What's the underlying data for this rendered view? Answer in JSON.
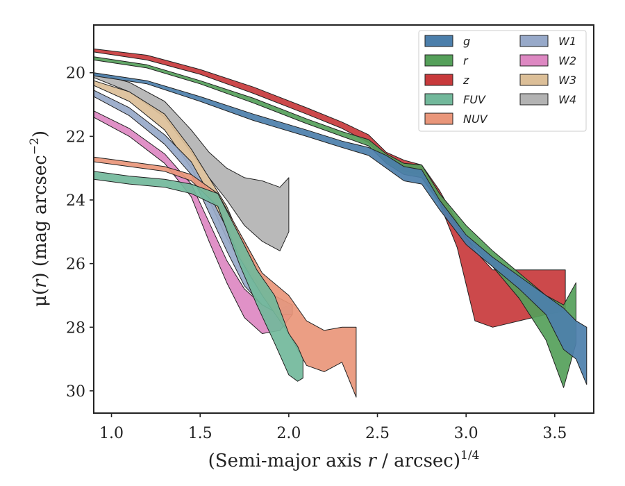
{
  "chart_data": {
    "type": "area",
    "xlabel_main": "(Semi-major axis ",
    "xlabel_var": "r",
    "xlabel_unit": " / arcsec)",
    "xlabel_exp": "1/4",
    "ylabel_main": "μ(",
    "ylabel_var": "r",
    "ylabel_unit": ") (mag arcsec",
    "ylabel_exp": "−2",
    "ylabel_close": ")",
    "xlim": [
      0.9,
      3.72
    ],
    "ylim": [
      30.7,
      18.5
    ],
    "y_inverted": true,
    "grid": false,
    "legend_position": "top-right",
    "legend_columns": 2,
    "xticks": [
      1.0,
      1.5,
      2.0,
      2.5,
      3.0,
      3.5
    ],
    "xtick_labels": [
      "1.0",
      "1.5",
      "2.0",
      "2.5",
      "3.0",
      "3.5"
    ],
    "yticks": [
      20,
      22,
      24,
      26,
      28,
      30
    ],
    "ytick_labels": [
      "20",
      "22",
      "24",
      "26",
      "28",
      "30"
    ],
    "series": [
      {
        "name": "g",
        "color": "#4c7fab",
        "x": [
          0.9,
          1.2,
          1.5,
          1.8,
          2.1,
          2.3,
          2.45,
          2.55,
          2.65,
          2.75,
          2.85,
          3.0,
          3.15,
          3.3,
          3.45,
          3.55,
          3.62,
          3.68
        ],
        "lo": [
          20.0,
          20.25,
          20.75,
          21.3,
          21.8,
          22.15,
          22.35,
          22.6,
          22.95,
          23.05,
          24.0,
          25.1,
          25.8,
          26.4,
          27.0,
          27.4,
          27.8,
          28.0
        ],
        "hi": [
          20.1,
          20.35,
          20.9,
          21.5,
          22.0,
          22.35,
          22.6,
          23.0,
          23.4,
          23.5,
          24.3,
          25.4,
          26.1,
          26.8,
          27.6,
          28.7,
          29.0,
          29.8
        ]
      },
      {
        "name": "r",
        "color": "#55a05a",
        "x": [
          0.9,
          1.2,
          1.5,
          1.8,
          2.1,
          2.3,
          2.45,
          2.55,
          2.65,
          2.75,
          2.85,
          3.0,
          3.15,
          3.3,
          3.45,
          3.55,
          3.62
        ],
        "lo": [
          19.5,
          19.75,
          20.25,
          20.8,
          21.45,
          21.85,
          22.1,
          22.55,
          22.85,
          22.9,
          23.8,
          24.8,
          25.6,
          26.3,
          27.0,
          27.3,
          26.6
        ],
        "hi": [
          19.6,
          19.85,
          20.35,
          20.95,
          21.6,
          22.0,
          22.3,
          22.85,
          23.2,
          23.3,
          24.1,
          25.2,
          26.1,
          27.1,
          28.4,
          29.9,
          28.5
        ]
      },
      {
        "name": "z",
        "color": "#c83a3c",
        "x": [
          0.9,
          1.2,
          1.5,
          1.8,
          2.1,
          2.3,
          2.45,
          2.55,
          2.65,
          2.75,
          2.85,
          2.95,
          3.05,
          3.15,
          3.3,
          3.45,
          3.56
        ],
        "lo": [
          19.25,
          19.45,
          19.9,
          20.45,
          21.1,
          21.55,
          21.95,
          22.5,
          22.75,
          22.9,
          23.7,
          24.7,
          25.6,
          26.2,
          26.2,
          26.2,
          26.2
        ],
        "hi": [
          19.35,
          19.6,
          20.05,
          20.65,
          21.3,
          21.75,
          22.2,
          22.8,
          23.1,
          23.2,
          24.1,
          25.5,
          27.8,
          28.0,
          27.8,
          27.6,
          27.5
        ]
      },
      {
        "name": "FUV",
        "color": "#72b89b",
        "x": [
          0.9,
          1.1,
          1.3,
          1.45,
          1.6,
          1.72,
          1.82,
          1.92,
          2.0,
          2.05,
          2.08
        ],
        "lo": [
          23.1,
          23.25,
          23.35,
          23.5,
          23.8,
          25.1,
          26.2,
          27.0,
          28.2,
          28.6,
          29.0
        ],
        "hi": [
          23.35,
          23.5,
          23.6,
          23.8,
          24.2,
          26.0,
          27.3,
          28.5,
          29.5,
          29.7,
          29.6
        ]
      },
      {
        "name": "NUV",
        "color": "#e9967a",
        "x": [
          0.9,
          1.1,
          1.3,
          1.45,
          1.6,
          1.72,
          1.85,
          2.0,
          2.1,
          2.2,
          2.3,
          2.38
        ],
        "lo": [
          22.65,
          22.8,
          22.95,
          23.2,
          23.8,
          25.0,
          26.3,
          27.0,
          27.8,
          28.1,
          28.0,
          28.0
        ],
        "hi": [
          22.8,
          22.95,
          23.1,
          23.4,
          24.2,
          25.8,
          27.0,
          28.2,
          29.2,
          29.4,
          29.1,
          30.2
        ]
      },
      {
        "name": "W1",
        "color": "#97a9c9",
        "x": [
          0.9,
          1.1,
          1.3,
          1.45,
          1.55,
          1.65,
          1.75,
          1.85,
          1.95,
          2.02
        ],
        "lo": [
          20.55,
          21.1,
          21.95,
          22.8,
          23.8,
          24.9,
          26.0,
          26.8,
          27.1,
          27.3
        ],
        "hi": [
          20.75,
          21.35,
          22.25,
          23.2,
          24.4,
          25.6,
          26.7,
          27.3,
          27.6,
          27.6
        ]
      },
      {
        "name": "W2",
        "color": "#dd88c2",
        "x": [
          0.9,
          1.1,
          1.3,
          1.45,
          1.55,
          1.65,
          1.75,
          1.85,
          1.95,
          2.02
        ],
        "lo": [
          21.2,
          21.75,
          22.55,
          23.5,
          24.7,
          25.9,
          26.8,
          27.3,
          27.4,
          27.3
        ],
        "hi": [
          21.4,
          22.0,
          22.85,
          23.9,
          25.3,
          26.6,
          27.7,
          28.2,
          28.1,
          27.6
        ]
      },
      {
        "name": "W3",
        "color": "#dcbf98",
        "x": [
          0.9,
          1.1,
          1.3,
          1.45,
          1.55,
          1.65,
          1.72,
          1.8
        ],
        "lo": [
          20.25,
          20.6,
          21.3,
          22.4,
          23.3,
          24.2,
          25.1,
          25.8
        ],
        "hi": [
          20.4,
          20.9,
          21.8,
          23.0,
          24.0,
          25.2,
          25.9,
          26.6
        ]
      },
      {
        "name": "W4",
        "color": "#b3b3b3",
        "x": [
          0.9,
          1.1,
          1.3,
          1.45,
          1.55,
          1.65,
          1.75,
          1.85,
          1.95,
          2.0
        ],
        "lo": [
          20.0,
          20.3,
          20.9,
          21.8,
          22.5,
          23.0,
          23.3,
          23.4,
          23.6,
          23.3
        ],
        "hi": [
          20.15,
          20.6,
          21.4,
          22.5,
          23.3,
          24.0,
          24.8,
          25.3,
          25.6,
          25.0
        ]
      }
    ],
    "legend": [
      {
        "label": "g",
        "color": "#4c7fab"
      },
      {
        "label": "r",
        "color": "#55a05a"
      },
      {
        "label": "z",
        "color": "#c83a3c"
      },
      {
        "label": "FUV",
        "color": "#72b89b"
      },
      {
        "label": "NUV",
        "color": "#e9967a"
      },
      {
        "label": "W1",
        "color": "#97a9c9"
      },
      {
        "label": "W2",
        "color": "#dd88c2"
      },
      {
        "label": "W3",
        "color": "#dcbf98"
      },
      {
        "label": "W4",
        "color": "#b3b3b3"
      }
    ]
  }
}
